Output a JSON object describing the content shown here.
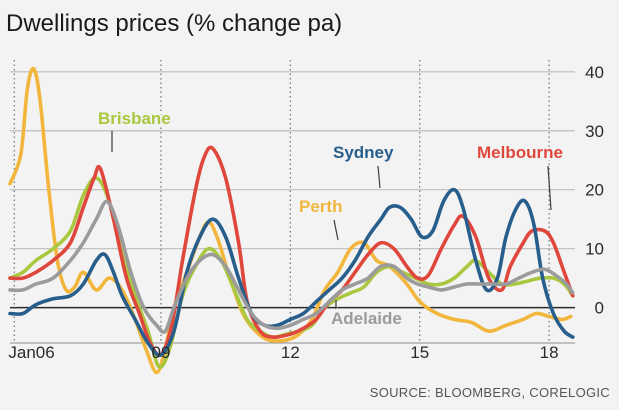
{
  "chart_data": {
    "type": "line",
    "title": "Dwellings prices (% change pa)",
    "source": "SOURCE: BLOOMBERG, CORELOGIC",
    "x_start": 2005.5,
    "x_end": 2018.6,
    "ylim": [
      -6,
      42
    ],
    "y_ticks": [
      0,
      10,
      20,
      30,
      40
    ],
    "x_tick_labels": [
      {
        "x": 2006.0,
        "label": "Jan06"
      },
      {
        "x": 2009.0,
        "label": "09"
      },
      {
        "x": 2012.0,
        "label": "12"
      },
      {
        "x": 2015.0,
        "label": "15"
      },
      {
        "x": 2018.0,
        "label": "18"
      }
    ],
    "dotted_gridlines_x": [
      2005.6,
      2009.0,
      2012.0,
      2015.0,
      2018.0
    ],
    "grid": "horizontal lines at y ticks; dotted vertical lines at year marks",
    "series": [
      {
        "name": "Perth",
        "color": "#f2b63c",
        "label_color": "#f2b63c",
        "points": [
          [
            2005.5,
            21
          ],
          [
            2005.75,
            26
          ],
          [
            2005.9,
            37
          ],
          [
            2006.05,
            40.5
          ],
          [
            2006.2,
            35
          ],
          [
            2006.4,
            20
          ],
          [
            2006.6,
            8
          ],
          [
            2006.8,
            3
          ],
          [
            2007.0,
            3.5
          ],
          [
            2007.2,
            6
          ],
          [
            2007.5,
            3
          ],
          [
            2007.8,
            5
          ],
          [
            2008.1,
            3
          ],
          [
            2008.4,
            -2
          ],
          [
            2008.65,
            -7
          ],
          [
            2008.9,
            -11
          ],
          [
            2009.1,
            -7
          ],
          [
            2009.3,
            0
          ],
          [
            2009.6,
            6
          ],
          [
            2009.9,
            12
          ],
          [
            2010.1,
            14.5
          ],
          [
            2010.3,
            12
          ],
          [
            2010.6,
            5
          ],
          [
            2010.9,
            -1
          ],
          [
            2011.2,
            -4
          ],
          [
            2011.5,
            -5.5
          ],
          [
            2011.9,
            -5.5
          ],
          [
            2012.2,
            -4.5
          ],
          [
            2012.5,
            -2
          ],
          [
            2012.8,
            3
          ],
          [
            2013.1,
            6
          ],
          [
            2013.4,
            10
          ],
          [
            2013.7,
            11
          ],
          [
            2014.0,
            8
          ],
          [
            2014.3,
            7
          ],
          [
            2014.7,
            4
          ],
          [
            2015.0,
            1
          ],
          [
            2015.4,
            -1
          ],
          [
            2015.8,
            -2
          ],
          [
            2016.2,
            -2.5
          ],
          [
            2016.6,
            -4
          ],
          [
            2017.0,
            -3
          ],
          [
            2017.4,
            -2
          ],
          [
            2017.7,
            -1
          ],
          [
            2018.0,
            -1.5
          ],
          [
            2018.3,
            -2
          ],
          [
            2018.5,
            -1.5
          ]
        ]
      },
      {
        "name": "Brisbane",
        "color": "#a9c840",
        "label_color": "#a9c840",
        "points": [
          [
            2005.5,
            5
          ],
          [
            2005.8,
            6
          ],
          [
            2006.1,
            8
          ],
          [
            2006.5,
            10
          ],
          [
            2006.9,
            13
          ],
          [
            2007.2,
            19
          ],
          [
            2007.5,
            22
          ],
          [
            2007.8,
            18
          ],
          [
            2008.1,
            9
          ],
          [
            2008.4,
            2
          ],
          [
            2008.7,
            -4
          ],
          [
            2008.95,
            -10
          ],
          [
            2009.2,
            -7
          ],
          [
            2009.5,
            2
          ],
          [
            2009.8,
            7
          ],
          [
            2010.1,
            10
          ],
          [
            2010.4,
            8
          ],
          [
            2010.7,
            3
          ],
          [
            2011.0,
            -2
          ],
          [
            2011.3,
            -4
          ],
          [
            2011.6,
            -5
          ],
          [
            2011.9,
            -4.5
          ],
          [
            2012.2,
            -4
          ],
          [
            2012.5,
            -3
          ],
          [
            2012.8,
            0
          ],
          [
            2013.1,
            1.5
          ],
          [
            2013.4,
            2.5
          ],
          [
            2013.7,
            3.5
          ],
          [
            2014.0,
            6
          ],
          [
            2014.3,
            7
          ],
          [
            2014.6,
            6
          ],
          [
            2014.9,
            5
          ],
          [
            2015.2,
            4
          ],
          [
            2015.5,
            4
          ],
          [
            2015.8,
            5
          ],
          [
            2016.1,
            7
          ],
          [
            2016.3,
            8
          ],
          [
            2016.6,
            6
          ],
          [
            2016.9,
            4
          ],
          [
            2017.2,
            4
          ],
          [
            2017.5,
            4.5
          ],
          [
            2017.8,
            5
          ],
          [
            2018.1,
            5
          ],
          [
            2018.35,
            4
          ],
          [
            2018.55,
            2
          ]
        ]
      },
      {
        "name": "Melbourne",
        "color": "#e0473c",
        "label_color": "#e0473c",
        "points": [
          [
            2005.5,
            5
          ],
          [
            2005.8,
            5
          ],
          [
            2006.1,
            6
          ],
          [
            2006.5,
            8
          ],
          [
            2006.9,
            11
          ],
          [
            2007.2,
            17
          ],
          [
            2007.45,
            22
          ],
          [
            2007.6,
            23.5
          ],
          [
            2007.9,
            15
          ],
          [
            2008.2,
            5
          ],
          [
            2008.5,
            -1
          ],
          [
            2008.75,
            -6
          ],
          [
            2009.0,
            -8
          ],
          [
            2009.25,
            -3
          ],
          [
            2009.5,
            8
          ],
          [
            2009.8,
            20
          ],
          [
            2010.0,
            25.5
          ],
          [
            2010.2,
            27
          ],
          [
            2010.5,
            22
          ],
          [
            2010.8,
            11
          ],
          [
            2011.0,
            1
          ],
          [
            2011.3,
            -4
          ],
          [
            2011.6,
            -5
          ],
          [
            2012.0,
            -4.5
          ],
          [
            2012.3,
            -3.5
          ],
          [
            2012.6,
            -2
          ],
          [
            2012.9,
            1
          ],
          [
            2013.2,
            3
          ],
          [
            2013.5,
            6
          ],
          [
            2013.8,
            9
          ],
          [
            2014.1,
            11
          ],
          [
            2014.4,
            10
          ],
          [
            2014.7,
            7
          ],
          [
            2014.95,
            5
          ],
          [
            2015.2,
            5.5
          ],
          [
            2015.5,
            10
          ],
          [
            2015.8,
            14
          ],
          [
            2016.0,
            15.5
          ],
          [
            2016.3,
            12
          ],
          [
            2016.6,
            5
          ],
          [
            2016.9,
            3
          ],
          [
            2017.1,
            7
          ],
          [
            2017.4,
            11
          ],
          [
            2017.6,
            13
          ],
          [
            2017.9,
            13
          ],
          [
            2018.1,
            11
          ],
          [
            2018.35,
            6
          ],
          [
            2018.55,
            2
          ]
        ]
      },
      {
        "name": "Sydney",
        "color": "#275e8c",
        "label_color": "#275e8c",
        "points": [
          [
            2005.5,
            -1
          ],
          [
            2005.8,
            -1
          ],
          [
            2006.1,
            0.5
          ],
          [
            2006.5,
            1.5
          ],
          [
            2006.9,
            2
          ],
          [
            2007.2,
            4
          ],
          [
            2007.5,
            8
          ],
          [
            2007.7,
            9
          ],
          [
            2007.9,
            6
          ],
          [
            2008.1,
            2
          ],
          [
            2008.4,
            -2
          ],
          [
            2008.7,
            -6
          ],
          [
            2009.0,
            -8
          ],
          [
            2009.3,
            -4
          ],
          [
            2009.6,
            6
          ],
          [
            2009.9,
            12
          ],
          [
            2010.2,
            15
          ],
          [
            2010.5,
            12
          ],
          [
            2010.8,
            5
          ],
          [
            2011.1,
            -1
          ],
          [
            2011.4,
            -3
          ],
          [
            2011.7,
            -3
          ],
          [
            2012.0,
            -2
          ],
          [
            2012.3,
            -1
          ],
          [
            2012.6,
            1
          ],
          [
            2012.9,
            3
          ],
          [
            2013.2,
            5
          ],
          [
            2013.5,
            8
          ],
          [
            2013.8,
            12
          ],
          [
            2014.1,
            15
          ],
          [
            2014.3,
            17
          ],
          [
            2014.55,
            17
          ],
          [
            2014.8,
            15
          ],
          [
            2015.05,
            12
          ],
          [
            2015.3,
            13
          ],
          [
            2015.55,
            18
          ],
          [
            2015.8,
            20
          ],
          [
            2016.0,
            17
          ],
          [
            2016.3,
            8
          ],
          [
            2016.55,
            3
          ],
          [
            2016.8,
            5
          ],
          [
            2017.0,
            12
          ],
          [
            2017.25,
            17
          ],
          [
            2017.45,
            18
          ],
          [
            2017.65,
            14
          ],
          [
            2017.85,
            5
          ],
          [
            2018.1,
            -1
          ],
          [
            2018.35,
            -4
          ],
          [
            2018.55,
            -5
          ]
        ]
      },
      {
        "name": "Adelaide",
        "color": "#9b9b9b",
        "label_color": "#9b9b9b",
        "points": [
          [
            2005.5,
            3
          ],
          [
            2005.8,
            3
          ],
          [
            2006.1,
            4
          ],
          [
            2006.5,
            5
          ],
          [
            2006.9,
            8
          ],
          [
            2007.2,
            11
          ],
          [
            2007.5,
            15
          ],
          [
            2007.75,
            18
          ],
          [
            2008.0,
            14
          ],
          [
            2008.3,
            6
          ],
          [
            2008.6,
            0
          ],
          [
            2008.9,
            -3
          ],
          [
            2009.1,
            -4
          ],
          [
            2009.3,
            0
          ],
          [
            2009.6,
            5
          ],
          [
            2009.9,
            8
          ],
          [
            2010.2,
            9
          ],
          [
            2010.5,
            7
          ],
          [
            2010.8,
            3
          ],
          [
            2011.1,
            -1
          ],
          [
            2011.4,
            -3
          ],
          [
            2011.7,
            -3.5
          ],
          [
            2012.0,
            -3
          ],
          [
            2012.3,
            -2
          ],
          [
            2012.6,
            -1
          ],
          [
            2012.9,
            1
          ],
          [
            2013.2,
            3
          ],
          [
            2013.5,
            4
          ],
          [
            2013.8,
            5
          ],
          [
            2014.1,
            7
          ],
          [
            2014.4,
            7
          ],
          [
            2014.7,
            5
          ],
          [
            2014.95,
            4
          ],
          [
            2015.2,
            3.5
          ],
          [
            2015.5,
            3
          ],
          [
            2015.8,
            3.5
          ],
          [
            2016.1,
            4
          ],
          [
            2016.4,
            4
          ],
          [
            2016.7,
            4
          ],
          [
            2017.0,
            4
          ],
          [
            2017.3,
            5
          ],
          [
            2017.6,
            6
          ],
          [
            2017.9,
            6.5
          ],
          [
            2018.15,
            5.5
          ],
          [
            2018.4,
            4
          ],
          [
            2018.55,
            2.5
          ]
        ]
      }
    ],
    "annotations": [
      {
        "label": "Brisbane"
      },
      {
        "label": "Sydney"
      },
      {
        "label": "Melbourne"
      },
      {
        "label": "Perth"
      },
      {
        "label": "Adelaide"
      }
    ]
  }
}
